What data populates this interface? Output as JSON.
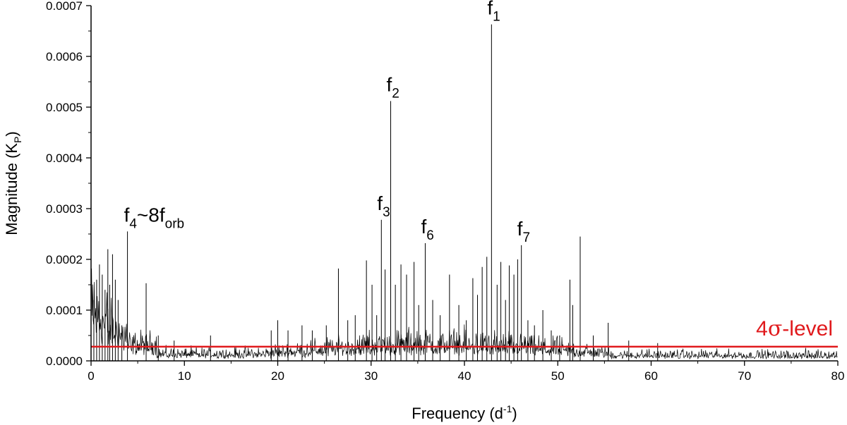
{
  "chart_data": {
    "type": "line",
    "title": "",
    "xlabel": "Frequency (d",
    "xlabel_sup": "-1",
    "xlabel_end": ")",
    "ylabel": "Magnitude (K",
    "ylabel_sub": "P",
    "ylabel_end": ")",
    "xlim": [
      0,
      80
    ],
    "ylim": [
      0,
      0.0007
    ],
    "x_ticks": [
      0,
      10,
      20,
      30,
      40,
      50,
      60,
      70,
      80
    ],
    "x_tick_labels": [
      "0",
      "10",
      "20",
      "30",
      "40",
      "50",
      "60",
      "70",
      "80"
    ],
    "y_ticks": [
      0,
      0.0001,
      0.0002,
      0.0003,
      0.0004,
      0.0005,
      0.0006,
      0.0007
    ],
    "y_tick_labels": [
      "0.0000",
      "0.0001",
      "0.0002",
      "0.0003",
      "0.0004",
      "0.0005",
      "0.0006",
      "0.0007"
    ],
    "grid": false,
    "legend": "none",
    "series_color": "#000000",
    "level_color": "#e0191c",
    "peaks": [
      {
        "x": 0.3,
        "y": 0.00012
      },
      {
        "x": 0.6,
        "y": 0.00016
      },
      {
        "x": 0.9,
        "y": 0.00019
      },
      {
        "x": 1.2,
        "y": 0.00017
      },
      {
        "x": 1.5,
        "y": 0.00014
      },
      {
        "x": 1.8,
        "y": 0.00022
      },
      {
        "x": 2.0,
        "y": 0.00015
      },
      {
        "x": 2.3,
        "y": 0.00021
      },
      {
        "x": 2.6,
        "y": 0.00016
      },
      {
        "x": 2.9,
        "y": 0.00012
      },
      {
        "x": 3.3,
        "y": 7e-05
      },
      {
        "x": 3.9,
        "y": 0.000255
      },
      {
        "x": 5.9,
        "y": 0.000153
      },
      {
        "x": 7.2,
        "y": 5e-05
      },
      {
        "x": 8.9,
        "y": 4e-05
      },
      {
        "x": 12.8,
        "y": 5e-05
      },
      {
        "x": 19.3,
        "y": 6e-05
      },
      {
        "x": 20.0,
        "y": 8e-05
      },
      {
        "x": 21.1,
        "y": 6e-05
      },
      {
        "x": 22.6,
        "y": 7e-05
      },
      {
        "x": 23.7,
        "y": 6e-05
      },
      {
        "x": 25.2,
        "y": 7e-05
      },
      {
        "x": 26.5,
        "y": 0.000182
      },
      {
        "x": 27.5,
        "y": 8e-05
      },
      {
        "x": 28.3,
        "y": 9e-05
      },
      {
        "x": 29.5,
        "y": 0.000198
      },
      {
        "x": 30.1,
        "y": 0.00015
      },
      {
        "x": 30.6,
        "y": 9e-05
      },
      {
        "x": 31.1,
        "y": 0.000278
      },
      {
        "x": 31.5,
        "y": 0.00018
      },
      {
        "x": 32.1,
        "y": 0.000512
      },
      {
        "x": 32.6,
        "y": 0.00015
      },
      {
        "x": 33.2,
        "y": 0.00019
      },
      {
        "x": 33.8,
        "y": 0.00017
      },
      {
        "x": 34.6,
        "y": 0.000195
      },
      {
        "x": 35.1,
        "y": 0.00011
      },
      {
        "x": 35.8,
        "y": 0.000232
      },
      {
        "x": 36.6,
        "y": 0.00012
      },
      {
        "x": 37.4,
        "y": 9e-05
      },
      {
        "x": 38.4,
        "y": 0.00017
      },
      {
        "x": 39.4,
        "y": 0.00011
      },
      {
        "x": 40.2,
        "y": 8e-05
      },
      {
        "x": 40.9,
        "y": 0.000163
      },
      {
        "x": 41.4,
        "y": 0.00013
      },
      {
        "x": 41.9,
        "y": 0.000185
      },
      {
        "x": 42.4,
        "y": 0.000205
      },
      {
        "x": 42.9,
        "y": 0.000663
      },
      {
        "x": 43.5,
        "y": 0.00015
      },
      {
        "x": 43.9,
        "y": 0.000195
      },
      {
        "x": 44.4,
        "y": 0.00012
      },
      {
        "x": 44.8,
        "y": 0.000188
      },
      {
        "x": 45.3,
        "y": 0.00017
      },
      {
        "x": 45.7,
        "y": 0.0002
      },
      {
        "x": 46.1,
        "y": 0.000228
      },
      {
        "x": 46.8,
        "y": 8e-05
      },
      {
        "x": 47.5,
        "y": 7e-05
      },
      {
        "x": 48.4,
        "y": 0.0001
      },
      {
        "x": 49.3,
        "y": 6e-05
      },
      {
        "x": 50.2,
        "y": 5e-05
      },
      {
        "x": 51.3,
        "y": 0.00016
      },
      {
        "x": 51.6,
        "y": 0.00011
      },
      {
        "x": 52.4,
        "y": 0.000245
      },
      {
        "x": 53.8,
        "y": 5e-05
      },
      {
        "x": 55.4,
        "y": 7.5e-05
      },
      {
        "x": 57.6,
        "y": 4e-05
      },
      {
        "x": 60.7,
        "y": 3.5e-05
      }
    ],
    "annotations": [
      {
        "main": "f",
        "sub": "1",
        "x": 42.9,
        "y": 0.000663
      },
      {
        "main": "f",
        "sub": "2",
        "x": 32.1,
        "y": 0.000512
      },
      {
        "main": "f",
        "sub": "3",
        "x": 31.1,
        "y": 0.000278
      },
      {
        "main": "f",
        "sub": "4",
        "tail_main": "~8f",
        "tail_sub": "orb",
        "x": 3.9,
        "y": 0.000255
      },
      {
        "main": "f",
        "sub": "6",
        "x": 35.8,
        "y": 0.000232
      },
      {
        "main": "f",
        "sub": "7",
        "x": 46.1,
        "y": 0.000228
      }
    ],
    "level": {
      "label_prefix": "4",
      "label_symbol": "σ",
      "label_suffix": "-level",
      "y": 2.8e-05
    }
  }
}
